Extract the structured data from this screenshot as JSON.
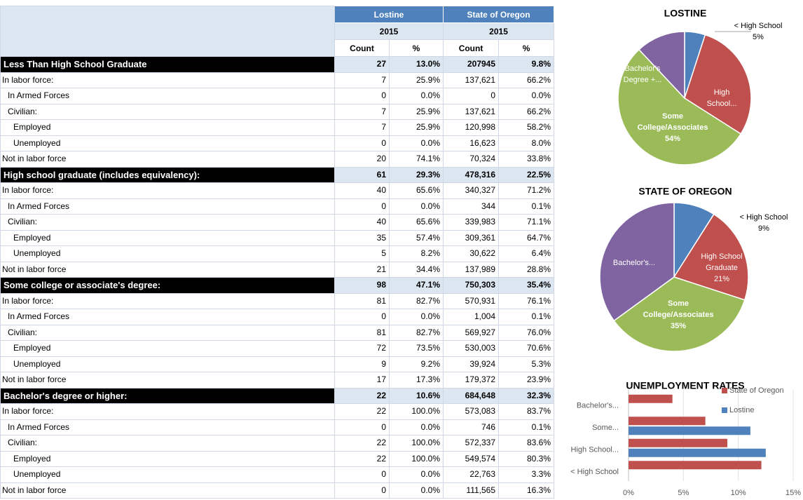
{
  "table": {
    "header": {
      "groups": [
        "Lostine",
        "State of Oregon"
      ],
      "years": [
        "2015",
        "2015"
      ],
      "columns": [
        "Count",
        "%",
        "Count",
        "%"
      ]
    },
    "sections": [
      {
        "title": "Less Than High School Graduate",
        "values": [
          "27",
          "13.0%",
          "207945",
          "9.8%"
        ],
        "rows": [
          {
            "label": "In labor force:",
            "values": [
              "7",
              "25.9%",
              "137,621",
              "66.2%"
            ]
          },
          {
            "label": "In Armed Forces",
            "values": [
              "0",
              "0.0%",
              "0",
              "0.0%"
            ]
          },
          {
            "label": "Civilian:",
            "values": [
              "7",
              "25.9%",
              "137,621",
              "66.2%"
            ]
          },
          {
            "label": "Employed",
            "values": [
              "7",
              "25.9%",
              "120,998",
              "58.2%"
            ]
          },
          {
            "label": "Unemployed",
            "values": [
              "0",
              "0.0%",
              "16,623",
              "8.0%"
            ]
          },
          {
            "label": "Not in labor force",
            "values": [
              "20",
              "74.1%",
              "70,324",
              "33.8%"
            ]
          }
        ]
      },
      {
        "title": "High school graduate (includes equivalency):",
        "values": [
          "61",
          "29.3%",
          "478,316",
          "22.5%"
        ],
        "rows": [
          {
            "label": "In labor force:",
            "values": [
              "40",
              "65.6%",
              "340,327",
              "71.2%"
            ]
          },
          {
            "label": "In Armed Forces",
            "values": [
              "0",
              "0.0%",
              "344",
              "0.1%"
            ]
          },
          {
            "label": "Civilian:",
            "values": [
              "40",
              "65.6%",
              "339,983",
              "71.1%"
            ]
          },
          {
            "label": "Employed",
            "values": [
              "35",
              "57.4%",
              "309,361",
              "64.7%"
            ]
          },
          {
            "label": "Unemployed",
            "values": [
              "5",
              "8.2%",
              "30,622",
              "6.4%"
            ]
          },
          {
            "label": "Not in labor force",
            "values": [
              "21",
              "34.4%",
              "137,989",
              "28.8%"
            ]
          }
        ]
      },
      {
        "title": "Some college or associate's degree:",
        "values": [
          "98",
          "47.1%",
          "750,303",
          "35.4%"
        ],
        "rows": [
          {
            "label": "In labor force:",
            "values": [
              "81",
              "82.7%",
              "570,931",
              "76.1%"
            ]
          },
          {
            "label": "In Armed Forces",
            "values": [
              "0",
              "0.0%",
              "1,004",
              "0.1%"
            ]
          },
          {
            "label": "Civilian:",
            "values": [
              "81",
              "82.7%",
              "569,927",
              "76.0%"
            ]
          },
          {
            "label": "Employed",
            "values": [
              "72",
              "73.5%",
              "530,003",
              "70.6%"
            ]
          },
          {
            "label": "Unemployed",
            "values": [
              "9",
              "9.2%",
              "39,924",
              "5.3%"
            ]
          },
          {
            "label": "Not in labor force",
            "values": [
              "17",
              "17.3%",
              "179,372",
              "23.9%"
            ]
          }
        ]
      },
      {
        "title": "Bachelor's degree or higher:",
        "values": [
          "22",
          "10.6%",
          "684,648",
          "32.3%"
        ],
        "rows": [
          {
            "label": "In labor force:",
            "values": [
              "22",
              "100.0%",
              "573,083",
              "83.7%"
            ]
          },
          {
            "label": "In Armed Forces",
            "values": [
              "0",
              "0.0%",
              "746",
              "0.1%"
            ]
          },
          {
            "label": "Civilian:",
            "values": [
              "22",
              "100.0%",
              "572,337",
              "83.6%"
            ]
          },
          {
            "label": "Employed",
            "values": [
              "22",
              "100.0%",
              "549,574",
              "80.3%"
            ]
          },
          {
            "label": "Unemployed",
            "values": [
              "0",
              "0.0%",
              "22,763",
              "3.3%"
            ]
          },
          {
            "label": "Not in labor force",
            "values": [
              "0",
              "0.0%",
              "111,565",
              "16.3%"
            ]
          }
        ]
      }
    ]
  },
  "chart_data": [
    {
      "type": "pie",
      "title": "LOSTINE",
      "categories": [
        "< High School",
        "High School...",
        "Some College/Associates",
        "Bachelor's Degree +..."
      ],
      "values": [
        5,
        29,
        54,
        12
      ],
      "value_labels": [
        "5%",
        null,
        "54%",
        null
      ],
      "colors": [
        "#4f81bd",
        "#c0504d",
        "#9bbb59",
        "#8064a2"
      ]
    },
    {
      "type": "pie",
      "title": "STATE OF OREGON",
      "categories": [
        "< High School",
        "High School Graduate",
        "Some College/Associates",
        "Bachelor's..."
      ],
      "values": [
        9,
        21,
        35,
        35
      ],
      "value_labels": [
        "9%",
        "21%",
        "35%",
        null
      ],
      "colors": [
        "#4f81bd",
        "#c0504d",
        "#9bbb59",
        "#8064a2"
      ]
    },
    {
      "type": "bar",
      "orientation": "horizontal",
      "title": "UNEMPLOYMENT RATES",
      "categories": [
        "< High School",
        "High School...",
        "Some...",
        "Bachelor's..."
      ],
      "series": [
        {
          "name": "State of Oregon",
          "color": "#c0504d",
          "values": [
            12.1,
            9.0,
            7.0,
            4.0
          ]
        },
        {
          "name": "Lostine",
          "color": "#4f81bd",
          "values": [
            0,
            12.5,
            11.1,
            0
          ]
        }
      ],
      "xlim": [
        0,
        15
      ],
      "xticks": [
        {
          "value": 0,
          "label": "0%"
        },
        {
          "value": 5,
          "label": "5%"
        },
        {
          "value": 10,
          "label": "10%"
        },
        {
          "value": 15,
          "label": "15%"
        }
      ],
      "grid": true,
      "legend": "upper right"
    }
  ]
}
